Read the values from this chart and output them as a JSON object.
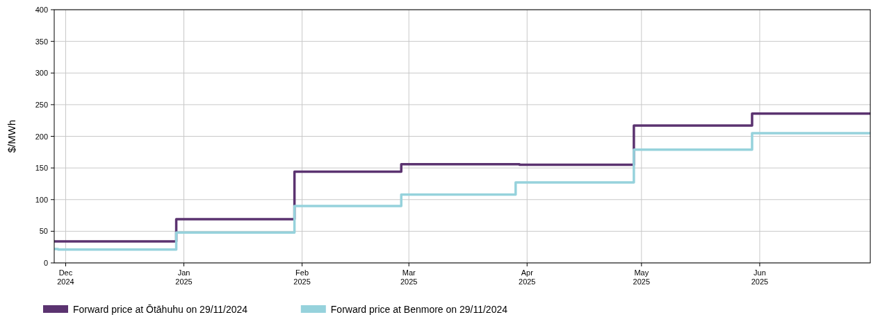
{
  "chart_data": {
    "type": "step",
    "ylabel": "$/MWh",
    "series": [
      {
        "name": "Forward price at Ōtāhuhu on 29/11/2024",
        "color": "#5b3370",
        "x": [
          "2024-11-28",
          "2024-12-30",
          "2025-01-30",
          "2025-02-27",
          "2025-03-30",
          "2025-04-29",
          "2025-05-30",
          "2025-06-30"
        ],
        "values": [
          34,
          69,
          144,
          156,
          155,
          217,
          236,
          236
        ]
      },
      {
        "name": "Forward price at Benmore on 29/11/2024",
        "color": "#96d2dc",
        "x": [
          "2024-11-28",
          "2024-11-29",
          "2024-12-30",
          "2025-01-30",
          "2025-02-27",
          "2025-03-29",
          "2025-04-29",
          "2025-05-30",
          "2025-06-30"
        ],
        "values": [
          22,
          21,
          48,
          90,
          108,
          127,
          179,
          205,
          205
        ]
      }
    ],
    "xlim": [
      "2024-11-28",
      "2025-06-30"
    ],
    "xticks": [
      {
        "value": "2024-12-01",
        "label": "Dec 2024"
      },
      {
        "value": "2025-01-01",
        "label": "Jan 2025"
      },
      {
        "value": "2025-02-01",
        "label": "Feb 2025"
      },
      {
        "value": "2025-03-01",
        "label": "Mar 2025"
      },
      {
        "value": "2025-04-01",
        "label": "Apr 2025"
      },
      {
        "value": "2025-05-01",
        "label": "May 2025"
      },
      {
        "value": "2025-06-01",
        "label": "Jun 2025"
      }
    ],
    "ylim": [
      0,
      400
    ],
    "yticks": [
      0,
      50,
      100,
      150,
      200,
      250,
      300,
      350,
      400
    ],
    "grid": true,
    "legend": "bottom left",
    "line_style": "solid",
    "marker": "none"
  }
}
